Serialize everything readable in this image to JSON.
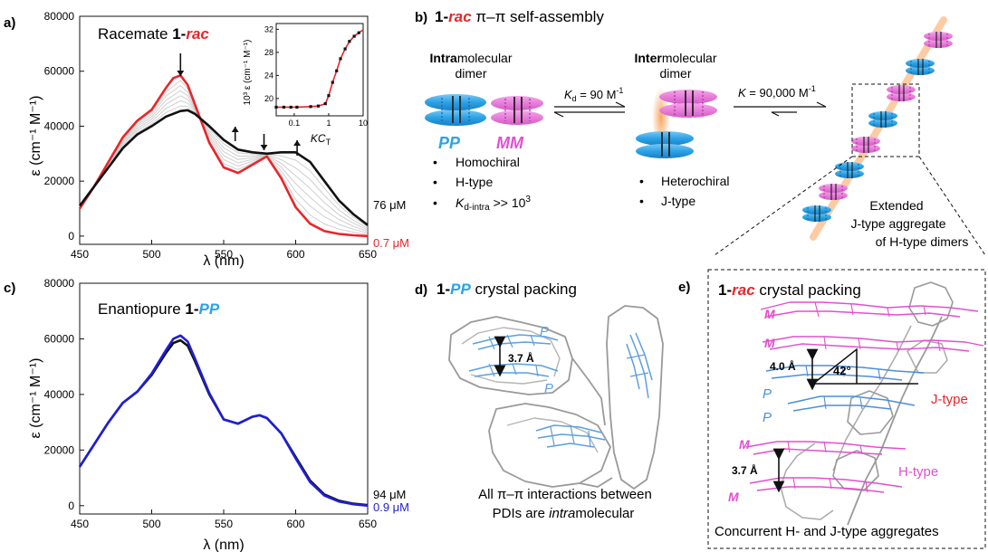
{
  "colors": {
    "red": "#e8262a",
    "blue": "#1f1fd6",
    "pp_blue": "#2aa3e6",
    "mm_magenta": "#e24fd0",
    "black": "#111111",
    "gray": "#8a8a8a",
    "light_gray": "#cfcfcf",
    "orange_glow": "#f7a35a"
  },
  "panel_a": {
    "label": "a)",
    "title_prefix": "Racemate ",
    "title_bold": "1-",
    "title_italic": "rac",
    "xlabel": "λ (nm)",
    "ylabel": "ε (cm⁻¹ M⁻¹)",
    "conc_high": "76 μM",
    "conc_low": "0.7 μM",
    "inset": {
      "xlabel": "KC",
      "xlabel_sub": "T",
      "ylabel": "10³ ε (cm⁻¹ M⁻¹)",
      "x_ticks": [
        "0.1",
        "1",
        "10"
      ],
      "y_ticks": [
        "20",
        "24",
        "28",
        "32"
      ]
    }
  },
  "panel_b": {
    "label": "b)",
    "title_bold": "1-",
    "title_italic": "rac",
    "title_rest": " π–π self-assembly",
    "intra_bold": "Intra",
    "intra_rest": "molecular",
    "intra_line2": "dimer",
    "inter_bold": "Inter",
    "inter_rest": "molecular",
    "inter_line2": "dimer",
    "kd_text": "K",
    "kd_sub": "d",
    "kd_value": " = 90 M",
    "kd_exp": "-1",
    "k_text": "K",
    "k_value": " = 90,000 M",
    "k_exp": "-1",
    "pp_label": "PP",
    "mm_label": "MM",
    "bullets_left": [
      "Homochiral",
      "H-type"
    ],
    "bullet_kd_main": "K",
    "bullet_kd_sub": "d-intra",
    "bullet_kd_rest": " >> 10",
    "bullet_kd_exp": "3",
    "bullets_mid": [
      "Heterochiral",
      "J-type"
    ],
    "extended": [
      "Extended",
      "J-type aggregate",
      "of H-type dimers"
    ]
  },
  "panel_c": {
    "label": "c)",
    "title_prefix": "Enantiopure ",
    "title_bold": "1-",
    "title_italic": "PP",
    "xlabel": "λ (nm)",
    "ylabel": "ε (cm⁻¹ M⁻¹)",
    "conc_high": "94 μM",
    "conc_low": "0.9 μM"
  },
  "panel_d": {
    "label": "d)",
    "title_bold": "1-",
    "title_italic": "PP",
    "title_rest": " crystal packing",
    "p_labels": [
      "P",
      "P"
    ],
    "distance": "3.7 Å",
    "caption_line1": "All π–π interactions between",
    "caption_line2_a": "PDIs are ",
    "caption_line2_b": "intra",
    "caption_line2_c": "molecular"
  },
  "panel_e": {
    "label": "e)",
    "title_bold": "1-",
    "title_italic": "rac",
    "title_rest": " crystal packing",
    "m_labels": [
      "M",
      "M",
      "M",
      "M"
    ],
    "p_labels": [
      "P",
      "P"
    ],
    "dist_top": "4.0 Å",
    "angle": "42°",
    "dist_bottom": "3.7 Å",
    "jtype": "J-type",
    "htype": "H-type",
    "caption": "Concurrent H- and J-type aggregates"
  },
  "chart_data": [
    {
      "type": "line",
      "panel": "a",
      "x_ticks": [
        450,
        500,
        550,
        600,
        650
      ],
      "y_ticks": [
        0,
        20000,
        40000,
        60000,
        80000
      ],
      "xlim": [
        450,
        650
      ],
      "ylim": [
        -3000,
        80000
      ],
      "xlabel": "λ (nm)",
      "ylabel": "ε (cm⁻¹ M⁻¹)",
      "series": [
        {
          "name": "0.7 μM",
          "color": "#e8262a",
          "x": [
            450,
            460,
            470,
            480,
            490,
            500,
            510,
            515,
            520,
            525,
            530,
            540,
            550,
            560,
            570,
            580,
            590,
            600,
            610,
            620,
            630,
            640,
            650
          ],
          "y": [
            10000,
            18000,
            27000,
            36000,
            42000,
            46000,
            54000,
            57500,
            58500,
            55000,
            48000,
            34000,
            25000,
            23000,
            26000,
            29000,
            21000,
            10500,
            4500,
            1800,
            800,
            300,
            0
          ]
        },
        {
          "name": "76 μM",
          "color": "#111111",
          "x": [
            450,
            460,
            470,
            480,
            490,
            500,
            510,
            520,
            525,
            530,
            540,
            550,
            560,
            570,
            580,
            590,
            600,
            610,
            620,
            630,
            640,
            650
          ],
          "y": [
            11000,
            18000,
            25000,
            32000,
            37000,
            40000,
            43500,
            45500,
            45800,
            44500,
            40000,
            35000,
            31500,
            30500,
            30000,
            30500,
            30500,
            27000,
            20000,
            13000,
            8000,
            4000
          ]
        }
      ],
      "intermediate_series_count": 6,
      "annotations": [
        "down arrow at 520 nm",
        "up arrow at 560 nm",
        "down arrow at 578 nm",
        "up arrow at 600 nm"
      ],
      "inset": {
        "type": "scatter",
        "xscale": "log",
        "xlim": [
          0.03,
          10
        ],
        "ylim": [
          17,
          33
        ],
        "x": [
          0.03,
          0.05,
          0.08,
          0.12,
          0.3,
          0.5,
          0.8,
          1.0,
          1.3,
          1.7,
          2.2,
          3.0,
          4.0,
          5.5,
          7.5
        ],
        "y": [
          18.5,
          18.5,
          18.5,
          18.5,
          18.6,
          18.7,
          19.1,
          20.5,
          22.8,
          24.8,
          26.9,
          28.6,
          29.9,
          30.8,
          31.4
        ],
        "fit_color": "#e8262a"
      }
    },
    {
      "type": "line",
      "panel": "c",
      "x_ticks": [
        450,
        500,
        550,
        600,
        650
      ],
      "y_ticks": [
        0,
        20000,
        40000,
        60000,
        80000
      ],
      "xlim": [
        450,
        650
      ],
      "ylim": [
        -3000,
        80000
      ],
      "xlabel": "λ (nm)",
      "ylabel": "ε (cm⁻¹ M⁻¹)",
      "series": [
        {
          "name": "94 μM",
          "color": "#111111",
          "x": [
            450,
            460,
            470,
            480,
            490,
            500,
            510,
            515,
            520,
            525,
            530,
            540,
            550,
            560,
            570,
            575,
            580,
            590,
            600,
            610,
            620,
            630,
            640,
            650
          ],
          "y": [
            14000,
            22000,
            30000,
            37000,
            41000,
            47000,
            55000,
            58500,
            59500,
            57500,
            52000,
            40000,
            31000,
            29500,
            32000,
            32500,
            31500,
            26000,
            17500,
            9000,
            4000,
            1800,
            700,
            200
          ]
        },
        {
          "name": "0.9 μM",
          "color": "#1f1fd6",
          "x": [
            450,
            460,
            470,
            480,
            490,
            500,
            510,
            515,
            520,
            525,
            530,
            540,
            550,
            560,
            570,
            575,
            580,
            590,
            600,
            610,
            620,
            630,
            640,
            650
          ],
          "y": [
            14000,
            22000,
            30000,
            37000,
            41000,
            47500,
            56000,
            60000,
            61200,
            59000,
            53000,
            40500,
            31000,
            29500,
            32000,
            32500,
            31500,
            26000,
            17000,
            8500,
            3600,
            1500,
            500,
            0
          ]
        }
      ]
    }
  ]
}
